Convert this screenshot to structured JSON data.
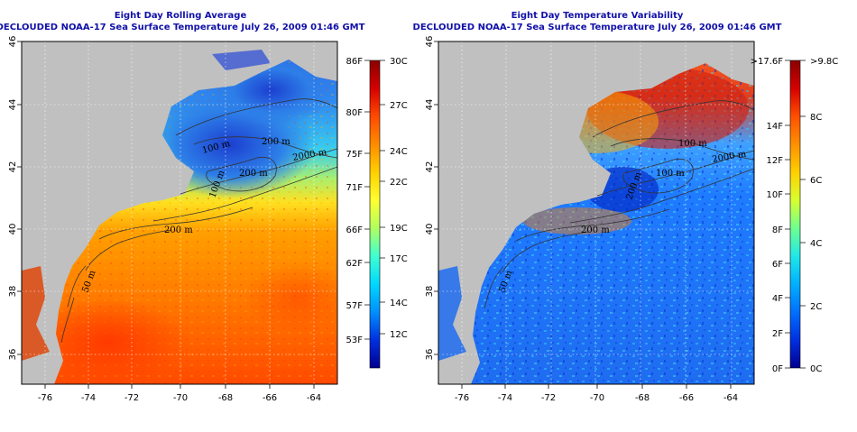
{
  "left_panel": {
    "title": "Eight Day Rolling Average",
    "subtitle": "DECLOUDED NOAA-17 Sea Surface Temperature July 26, 2009 01:46 GMT",
    "x_ticks": [
      "-76",
      "-74",
      "-72",
      "-70",
      "-68",
      "-66",
      "-64"
    ],
    "y_ticks": [
      "36",
      "38",
      "40",
      "42",
      "44",
      "46"
    ],
    "contour_labels": [
      "200 m",
      "100 m",
      "2000 m",
      "200 m",
      "100 m",
      "200 m",
      "50 m"
    ],
    "colorbar": {
      "fahrenheit_labels": [
        "86F",
        "80F",
        "75F",
        "71F",
        "66F",
        "62F",
        "57F",
        "53F"
      ],
      "celsius_labels": [
        "30C",
        "27C",
        "24C",
        "22C",
        "19C",
        "17C",
        "14C",
        "12C"
      ],
      "gradient_colors": [
        "#8b0000",
        "#d60000",
        "#ff4a00",
        "#ff8c00",
        "#ffd000",
        "#ffff30",
        "#b0ff60",
        "#40ffd0",
        "#00d8ff",
        "#0090ff",
        "#0030e0",
        "#000090"
      ]
    }
  },
  "right_panel": {
    "title": "Eight Day Temperature Variability",
    "subtitle": "DECLOUDED NOAA-17 Sea Surface Temperature July 26, 2009 01:46 GMT",
    "x_ticks": [
      "-76",
      "-74",
      "-72",
      "-70",
      "-68",
      "-66",
      "-64"
    ],
    "y_ticks": [
      "36",
      "38",
      "40",
      "42",
      "44",
      "46"
    ],
    "contour_labels": [
      "100 m",
      "2000 m",
      "100 m",
      "200 m",
      "200 m",
      "50 m"
    ],
    "colorbar": {
      "fahrenheit_labels": [
        ">17.6F",
        "14F",
        "12F",
        "10F",
        "8F",
        "6F",
        "4F",
        "2F",
        "0F"
      ],
      "celsius_labels": [
        ">9.8C",
        "8C",
        "6C",
        "4C",
        "2C",
        "0C"
      ],
      "gradient_colors": [
        "#8b0000",
        "#d60000",
        "#ff5000",
        "#ff9000",
        "#ffd000",
        "#d8ff30",
        "#70ff90",
        "#20e8e8",
        "#00b0ff",
        "#0070ff",
        "#0030e0",
        "#000090"
      ]
    }
  },
  "colors": {
    "title": "#1010a8",
    "land": "#c0c0c0",
    "grid": "#ffffff",
    "contour": "#333333"
  }
}
